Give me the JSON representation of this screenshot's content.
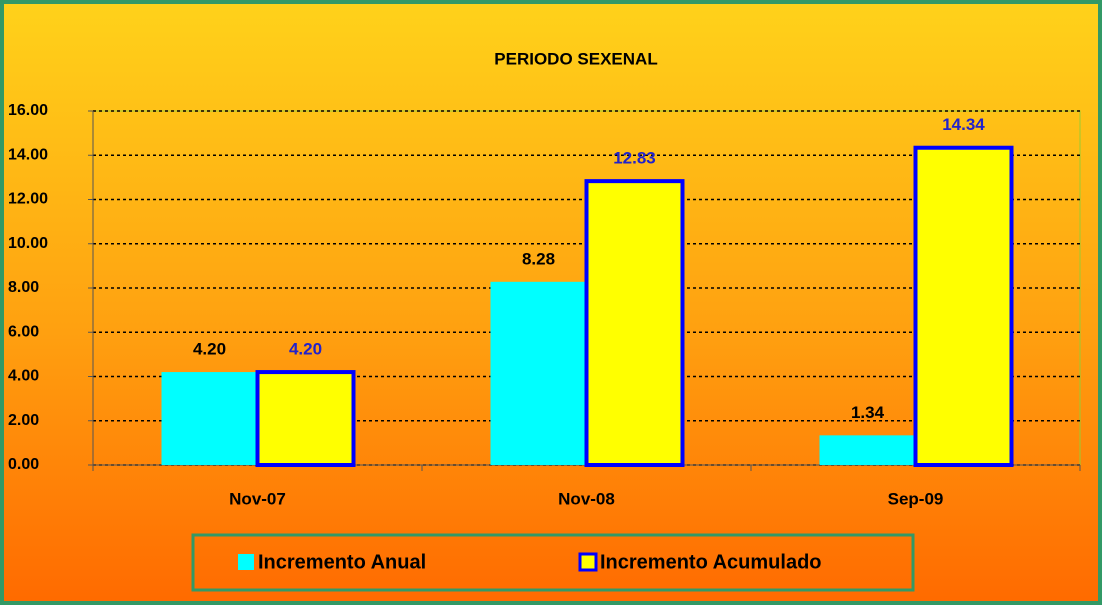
{
  "chart_data": {
    "type": "bar",
    "title": "PERIODO SEXENAL",
    "categories": [
      "Nov-07",
      "Nov-08",
      "Sep-09"
    ],
    "series": [
      {
        "name": "Incremento Anual",
        "color": "#00ffff",
        "label_color": "#000000",
        "values": [
          4.2,
          8.28,
          1.34
        ],
        "value_labels": [
          "4.20",
          "8.28",
          "1.34"
        ]
      },
      {
        "name": "Incremento Acumulado",
        "color": "#ffff00",
        "stroke": "#0000ff",
        "label_color": "#2222cc",
        "values": [
          4.2,
          12.83,
          14.34
        ],
        "value_labels": [
          "4.20",
          "12.83",
          "14.34"
        ]
      }
    ],
    "ylim": [
      0,
      16
    ],
    "yticks": [
      {
        "value": 0,
        "label": "0.00"
      },
      {
        "value": 2,
        "label": "2.00"
      },
      {
        "value": 4,
        "label": "4.00"
      },
      {
        "value": 6,
        "label": "6.00"
      },
      {
        "value": 8,
        "label": "8.00"
      },
      {
        "value": 10,
        "label": "10.00"
      },
      {
        "value": 12,
        "label": "12.00"
      },
      {
        "value": 14,
        "label": "14.00"
      },
      {
        "value": 16,
        "label": "16.00"
      }
    ],
    "grid": true,
    "legend": "bottom"
  }
}
